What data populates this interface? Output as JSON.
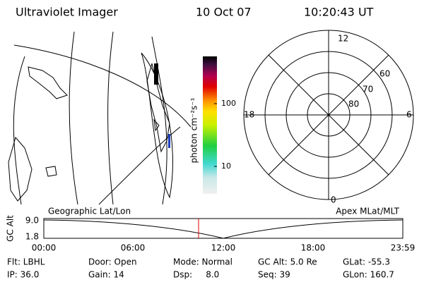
{
  "header": {
    "title": "Ultraviolet Imager",
    "date": "10 Oct 07",
    "time": "10:20:43 UT"
  },
  "colorbar": {
    "label": "photon cm⁻²s⁻¹",
    "ticks": [
      "100",
      "10"
    ]
  },
  "polar": {
    "mlt_labels": [
      "12",
      "18",
      "6",
      "0"
    ],
    "lat_labels": [
      "60",
      "70",
      "80"
    ]
  },
  "altitude_plot": {
    "left_label": "Geographic Lat/Lon",
    "right_label": "Apex MLat/MLT",
    "y_label": "GC Alt",
    "y_ticks": [
      "9.0",
      "1.8"
    ],
    "x_ticks": [
      "00:00",
      "06:00",
      "12:00",
      "18:00",
      "23:59"
    ]
  },
  "status": {
    "rows": [
      [
        "Flt: LBHL",
        "Door: Open",
        "Mode: Normal",
        "GC Alt: 5.0 Re",
        "GLat: -55.3"
      ],
      [
        "IP: 36.0",
        "Gain: 14",
        "Dsp:     8.0",
        "Seq: 39",
        "GLon: 160.7"
      ]
    ]
  }
}
